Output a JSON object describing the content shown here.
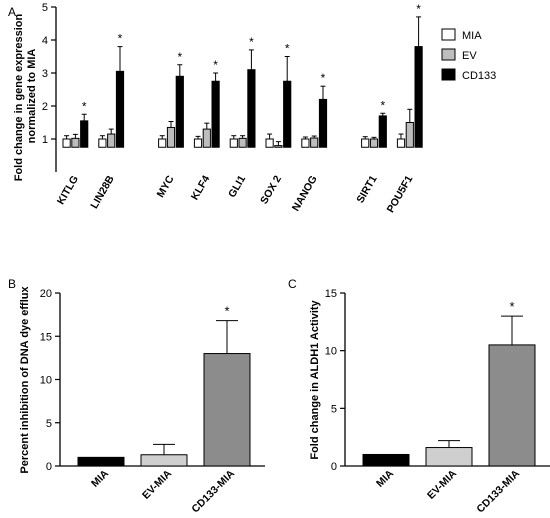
{
  "panel_letters": [
    "A",
    "B",
    "C"
  ],
  "chart_data": [
    {
      "panel": "A",
      "type": "bar",
      "ylabel": "Fold change in gene expression\nnormalized to MIA",
      "ylim": [
        0,
        5
      ],
      "yticks": [
        1,
        2,
        3,
        4,
        5
      ],
      "grid": false,
      "legend_position": "top-right",
      "groups": [
        [
          "KITLG",
          "LIN28B"
        ],
        [
          "MYC",
          "KLF4",
          "GLI1",
          "SOX 2",
          "NANOG"
        ],
        [
          "SIRT1",
          "POU5F1"
        ]
      ],
      "categories": [
        "KITLG",
        "LIN28B",
        "MYC",
        "KLF4",
        "GLI1",
        "SOX 2",
        "NANOG",
        "SIRT1",
        "POU5F1"
      ],
      "series": [
        {
          "name": "MIA",
          "color": "#ffffff",
          "values": [
            1.0,
            1.0,
            1.0,
            1.0,
            1.0,
            1.0,
            1.0,
            1.0,
            1.0
          ],
          "errors": [
            0.1,
            0.1,
            0.1,
            0.08,
            0.1,
            0.15,
            0.06,
            0.07,
            0.15
          ]
        },
        {
          "name": "EV",
          "color": "#bdbdbd",
          "values": [
            1.02,
            1.15,
            1.35,
            1.3,
            1.02,
            0.8,
            1.03,
            1.0,
            1.5
          ],
          "errors": [
            0.12,
            0.15,
            0.18,
            0.18,
            0.08,
            0.12,
            0.06,
            0.05,
            0.4
          ]
        },
        {
          "name": "CD133",
          "color": "#000000",
          "values": [
            1.55,
            3.05,
            2.9,
            2.75,
            3.1,
            2.75,
            2.2,
            1.7,
            3.8
          ],
          "errors": [
            0.2,
            0.75,
            0.35,
            0.25,
            0.6,
            0.75,
            0.4,
            0.08,
            0.9
          ]
        }
      ],
      "significance": [
        "*",
        "*",
        "*",
        "*",
        "*",
        "*",
        "*",
        "*",
        "*"
      ]
    },
    {
      "panel": "B",
      "type": "bar",
      "ylabel": "Percent inhibition of DNA dye efflux",
      "ylim": [
        0,
        20
      ],
      "yticks": [
        0,
        5,
        10,
        15,
        20
      ],
      "categories": [
        "MIA",
        "EV-MIA",
        "CD133-MIA"
      ],
      "values": [
        1.0,
        1.3,
        13.0
      ],
      "errors": [
        0,
        1.2,
        3.8
      ],
      "colors": [
        "#000000",
        "#cfcfcf",
        "#8c8c8c"
      ],
      "significance": [
        "",
        "",
        "*"
      ]
    },
    {
      "panel": "C",
      "type": "bar",
      "ylabel": "Fold change in ALDH1 Activity",
      "ylim": [
        0,
        15
      ],
      "yticks": [
        0,
        5,
        10,
        15
      ],
      "categories": [
        "MIA",
        "EV-MIA",
        "CD133-MIA"
      ],
      "values": [
        1.0,
        1.6,
        10.5
      ],
      "errors": [
        0,
        0.6,
        2.5
      ],
      "colors": [
        "#000000",
        "#cfcfcf",
        "#8c8c8c"
      ],
      "significance": [
        "",
        "",
        "*"
      ]
    }
  ]
}
